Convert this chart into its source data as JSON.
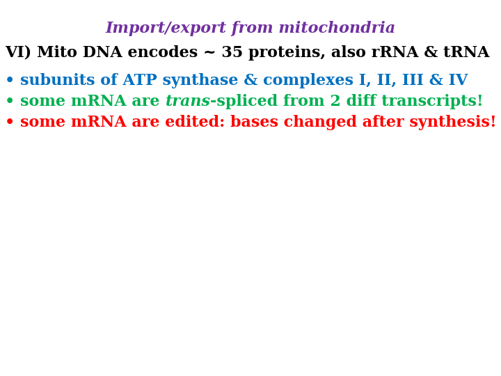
{
  "title": "Import/export from mitochondria",
  "title_color": "#7030A0",
  "title_fontsize": 16,
  "line2_text": "VI) Mito DNA encodes ~ 35 proteins, also rRNA & tRNA",
  "line2_color": "#000000",
  "line2_fontsize": 16,
  "line3_bullet": "• ",
  "line3_text": "subunits of ATP synthase & complexes I, II, III & IV",
  "line3_color": "#0070C0",
  "line3_fontsize": 16,
  "line4_bullet": "• ",
  "line4_pre": "some mRNA are ",
  "line4_italic": "trans",
  "line4_post": "-spliced from 2 diff transcripts!",
  "line4_color": "#00B050",
  "line4_fontsize": 16,
  "line5_bullet": "• ",
  "line5_text": "some mRNA are edited: bases changed after synthesis!",
  "line5_color": "#FF0000",
  "line5_fontsize": 16,
  "background_color": "#FFFFFF"
}
